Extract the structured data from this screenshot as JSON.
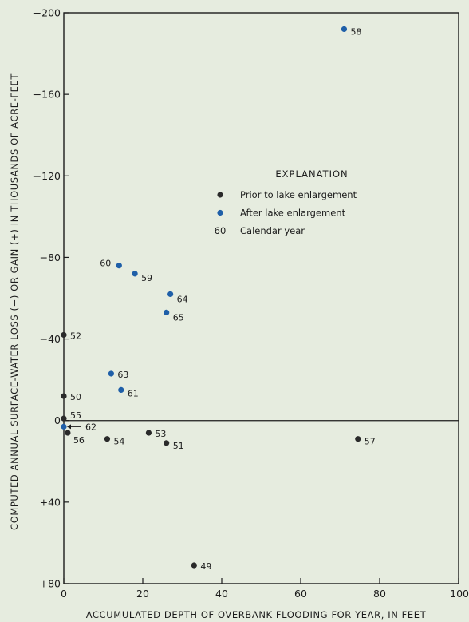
{
  "chart_data": {
    "type": "scatter",
    "title": "",
    "xlabel": "ACCUMULATED DEPTH OF OVERBANK FLOODING FOR YEAR, IN FEET",
    "ylabel": "COMPUTED ANNUAL SURFACE-WATER LOSS (−) OR GAIN (+) IN THOUSANDS OF ACRE-FEET",
    "xlim": [
      0,
      100
    ],
    "ylim": [
      -200,
      80
    ],
    "y_inverted": true,
    "x_ticks": [
      "0",
      "20",
      "40",
      "60",
      "80",
      "100"
    ],
    "y_ticks": [
      "−200",
      "−160",
      "−120",
      "−80",
      "−40",
      "0",
      "+40",
      "+80"
    ],
    "grid": false,
    "series": [
      {
        "name": "Prior to lake enlargement",
        "color": "#2a2a2a",
        "points": [
          {
            "x": 0,
            "y": -42,
            "label": "52"
          },
          {
            "x": 0,
            "y": -12,
            "label": "50"
          },
          {
            "x": 0,
            "y": -1,
            "label": "55"
          },
          {
            "x": 1,
            "y": 6,
            "label": "56"
          },
          {
            "x": 11,
            "y": 9,
            "label": "54"
          },
          {
            "x": 21.5,
            "y": 6,
            "label": "53"
          },
          {
            "x": 26,
            "y": 11,
            "label": "51"
          },
          {
            "x": 74.5,
            "y": 9,
            "label": "57"
          },
          {
            "x": 33,
            "y": 71,
            "label": "49"
          }
        ]
      },
      {
        "name": "After lake enlargement",
        "color": "#1f5fa8",
        "points": [
          {
            "x": 71,
            "y": -192,
            "label": "58"
          },
          {
            "x": 14,
            "y": -76,
            "label": "60"
          },
          {
            "x": 18,
            "y": -72,
            "label": "59"
          },
          {
            "x": 27,
            "y": -62,
            "label": "64"
          },
          {
            "x": 26,
            "y": -53,
            "label": "65"
          },
          {
            "x": 12,
            "y": -23,
            "label": "63"
          },
          {
            "x": 14.5,
            "y": -15,
            "label": "61"
          },
          {
            "x": 0,
            "y": 3,
            "label": "62"
          }
        ]
      }
    ],
    "legend": {
      "title": "EXPLANATION",
      "placement": "right",
      "entries": [
        {
          "text": "Prior to lake enlargement",
          "symbol": "dot",
          "color": "#2a2a2a"
        },
        {
          "text": "After lake enlargement",
          "symbol": "dot",
          "color": "#1f5fa8"
        },
        {
          "text": "Calendar year",
          "symbol": "text",
          "sample": "60"
        }
      ]
    }
  }
}
